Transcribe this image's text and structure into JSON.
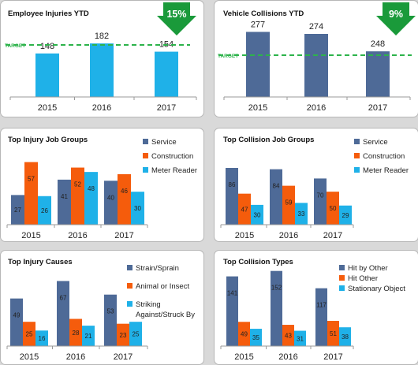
{
  "colors": {
    "light_blue": "#1fb1e8",
    "dark_blue": "#4e6a97",
    "orange": "#f55c0c",
    "target_green": "#2db34b",
    "arrow_green": "#1a9a3a"
  },
  "chart_data": [
    {
      "id": "injuries_ytd",
      "type": "bar",
      "title": "Employee Injuries YTD",
      "categories": [
        "2015",
        "2016",
        "2017"
      ],
      "values": [
        148,
        182,
        154
      ],
      "target_label": "TARGET",
      "badge": "15%",
      "badge_icon": "down-arrow-icon"
    },
    {
      "id": "collisions_ytd",
      "type": "bar",
      "title": "Vehicle Collisions  YTD",
      "categories": [
        "2015",
        "2016",
        "2017"
      ],
      "values": [
        277,
        274,
        248
      ],
      "target_label": "TARGET",
      "badge": "9%",
      "badge_icon": "down-arrow-icon"
    },
    {
      "id": "injury_job_groups",
      "type": "bar",
      "title": "Top Injury Job Groups",
      "categories": [
        "2015",
        "2016",
        "2017"
      ],
      "series": [
        {
          "name": "Service",
          "values": [
            27,
            41,
            40
          ]
        },
        {
          "name": "Construction",
          "values": [
            57,
            52,
            46
          ]
        },
        {
          "name": "Meter Reader",
          "values": [
            26,
            48,
            30
          ]
        }
      ]
    },
    {
      "id": "collision_job_groups",
      "type": "bar",
      "title": "Top Collision  Job Groups",
      "categories": [
        "2015",
        "2016",
        "2017"
      ],
      "series": [
        {
          "name": "Service",
          "values": [
            86,
            84,
            70
          ]
        },
        {
          "name": "Construction",
          "values": [
            47,
            59,
            50
          ]
        },
        {
          "name": "Meter Reader",
          "values": [
            30,
            33,
            29
          ]
        }
      ]
    },
    {
      "id": "injury_causes",
      "type": "bar",
      "title": "Top Injury Causes",
      "categories": [
        "2015",
        "2016",
        "2017"
      ],
      "series": [
        {
          "name": "Strain/Sprain",
          "values": [
            49,
            67,
            53
          ]
        },
        {
          "name": "Animal or Insect",
          "values": [
            25,
            28,
            23
          ]
        },
        {
          "name": "Striking Against/Struck By",
          "legend_lines": [
            "Striking",
            "Against/Struck By"
          ],
          "values": [
            16,
            21,
            25
          ]
        }
      ]
    },
    {
      "id": "collision_types",
      "type": "bar",
      "title": "Top Collision Types",
      "categories": [
        "2015",
        "2016",
        "2017"
      ],
      "series": [
        {
          "name": "Hit by Other",
          "values": [
            141,
            152,
            117
          ]
        },
        {
          "name": "Hit Other",
          "values": [
            49,
            43,
            51
          ]
        },
        {
          "name": "Stationary Object",
          "values": [
            35,
            31,
            38
          ]
        }
      ]
    }
  ]
}
